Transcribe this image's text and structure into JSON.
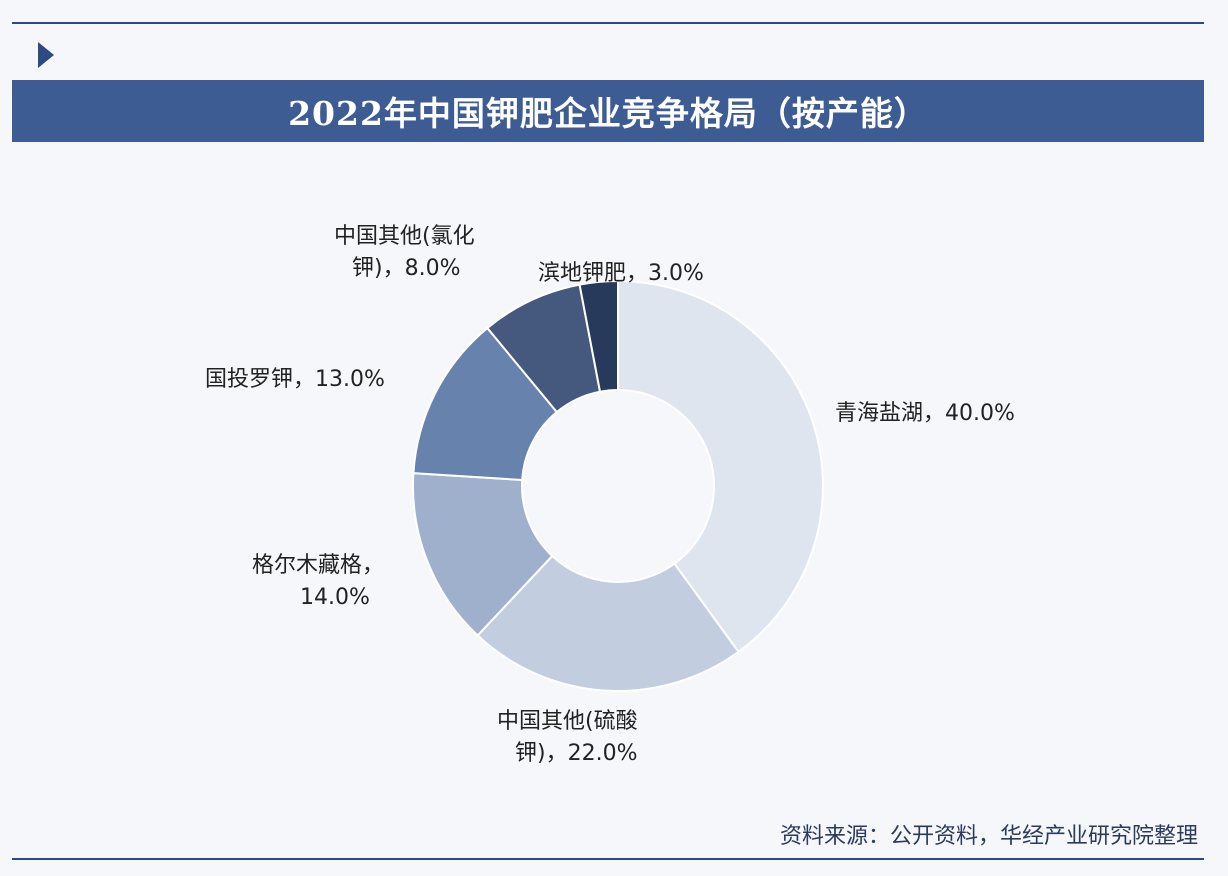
{
  "header": {
    "title": "2022年中国钾肥企业竞争格局（按产能）"
  },
  "footer": {
    "source": "资料来源：公开资料，华经产业研究院整理"
  },
  "chart_data": {
    "type": "pie",
    "donut": true,
    "title": "2022年中国钾肥企业竞争格局（按产能）",
    "unit": "%",
    "start_angle_deg": 0,
    "direction": "clockwise",
    "slices": [
      {
        "name": "青海盐湖",
        "value": 40.0,
        "label_lines": [
          "青海盐湖，40.0%"
        ],
        "color": "#dfe5ef"
      },
      {
        "name": "中国其他(硫酸钾)",
        "value": 22.0,
        "label_lines": [
          "中国其他(硫酸",
          "钾)，22.0%"
        ],
        "color": "#c2cde0"
      },
      {
        "name": "格尔木藏格",
        "value": 14.0,
        "label_lines": [
          "格尔木藏格，",
          "14.0%"
        ],
        "color": "#9eb0cc"
      },
      {
        "name": "国投罗钾",
        "value": 13.0,
        "label_lines": [
          "国投罗钾，13.0%"
        ],
        "color": "#6882ae"
      },
      {
        "name": "中国其他(氯化钾)",
        "value": 8.0,
        "label_lines": [
          "中国其他(氯化",
          "钾)，8.0%"
        ],
        "color": "#45597f"
      },
      {
        "name": "滨地钾肥",
        "value": 3.0,
        "label_lines": [
          "滨地钾肥，3.0%"
        ],
        "color": "#283a5c"
      }
    ]
  }
}
